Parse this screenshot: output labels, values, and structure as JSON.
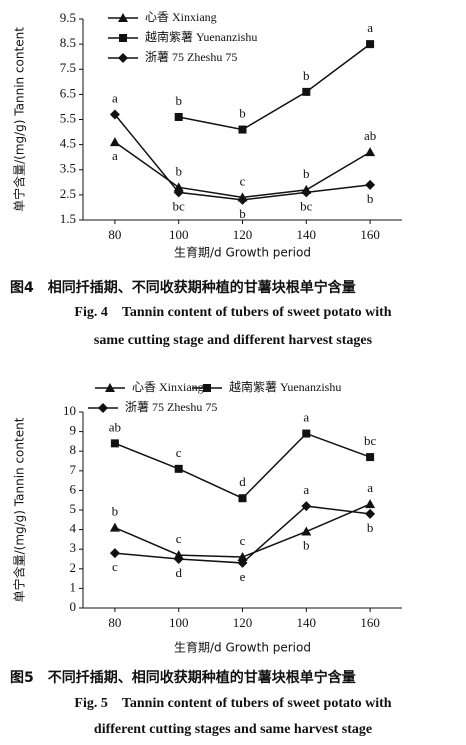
{
  "chart_data": [
    {
      "type": "line",
      "x_label": "生育期/d Growth period",
      "y_label": "单宁含量/(mg/g) Tannin content",
      "x": [
        80,
        100,
        120,
        140,
        160
      ],
      "xlim": [
        70,
        170
      ],
      "xticks": [
        80,
        100,
        120,
        140,
        160
      ],
      "ylim": [
        1.5,
        9.5
      ],
      "yticks": [
        1.5,
        2.5,
        3.5,
        4.5,
        5.5,
        6.5,
        7.5,
        8.5,
        9.5
      ],
      "series": [
        {
          "name": "心香 Xinxiang",
          "marker": "triangle",
          "color": "#111111",
          "values": [
            4.6,
            2.8,
            2.4,
            2.7,
            4.2
          ],
          "letters": [
            "a",
            "b",
            "c",
            "b",
            "ab"
          ]
        },
        {
          "name": "越南紫薯 Yuenanzishu",
          "marker": "square",
          "color": "#111111",
          "values": [
            null,
            5.6,
            5.1,
            6.6,
            8.5
          ],
          "letters": [
            null,
            "b",
            "b",
            "b",
            "a"
          ]
        },
        {
          "name": "浙薯 75 Zheshu 75",
          "marker": "diamond",
          "color": "#111111",
          "values": [
            5.7,
            2.6,
            2.3,
            2.6,
            2.9
          ],
          "letters": [
            "a",
            "bc",
            "b",
            "bc",
            "b"
          ]
        }
      ],
      "caption_cn": "图4　相同扦插期、不同收获期种植的甘薯块根单宁含量",
      "caption_en": [
        "Fig. 4　Tannin content of tubers of sweet potato with",
        "same cutting stage and different harvest stages"
      ]
    },
    {
      "type": "line",
      "x_label": "生育期/d Growth period",
      "y_label": "单宁含量/(mg/g) Tannin content",
      "x": [
        80,
        100,
        120,
        140,
        160
      ],
      "xlim": [
        70,
        170
      ],
      "xticks": [
        80,
        100,
        120,
        140,
        160
      ],
      "ylim": [
        0,
        10
      ],
      "yticks": [
        0,
        1,
        2,
        3,
        4,
        5,
        6,
        7,
        8,
        9,
        10
      ],
      "series": [
        {
          "name": "心香 Xinxiang",
          "marker": "triangle",
          "color": "#111111",
          "values": [
            4.1,
            2.7,
            2.6,
            3.9,
            5.3
          ],
          "letters": [
            "b",
            "c",
            "c",
            "b",
            "a"
          ]
        },
        {
          "name": "越南紫薯 Yuenanzishu",
          "marker": "square",
          "color": "#111111",
          "values": [
            8.4,
            7.1,
            5.6,
            8.9,
            7.7
          ],
          "letters": [
            "ab",
            "c",
            "d",
            "a",
            "bc"
          ]
        },
        {
          "name": "浙薯 75 Zheshu 75",
          "marker": "diamond",
          "color": "#111111",
          "values": [
            2.8,
            2.5,
            2.3,
            5.2,
            4.8
          ],
          "letters": [
            "c",
            "d",
            "e",
            "a",
            "b"
          ]
        }
      ],
      "caption_cn": "图5　不同扦插期、相同收获期种植的甘薯块根单宁含量",
      "caption_en": [
        "Fig. 5　Tannin content of tubers of sweet potato with",
        "different cutting stages and same harvest stage"
      ]
    }
  ]
}
